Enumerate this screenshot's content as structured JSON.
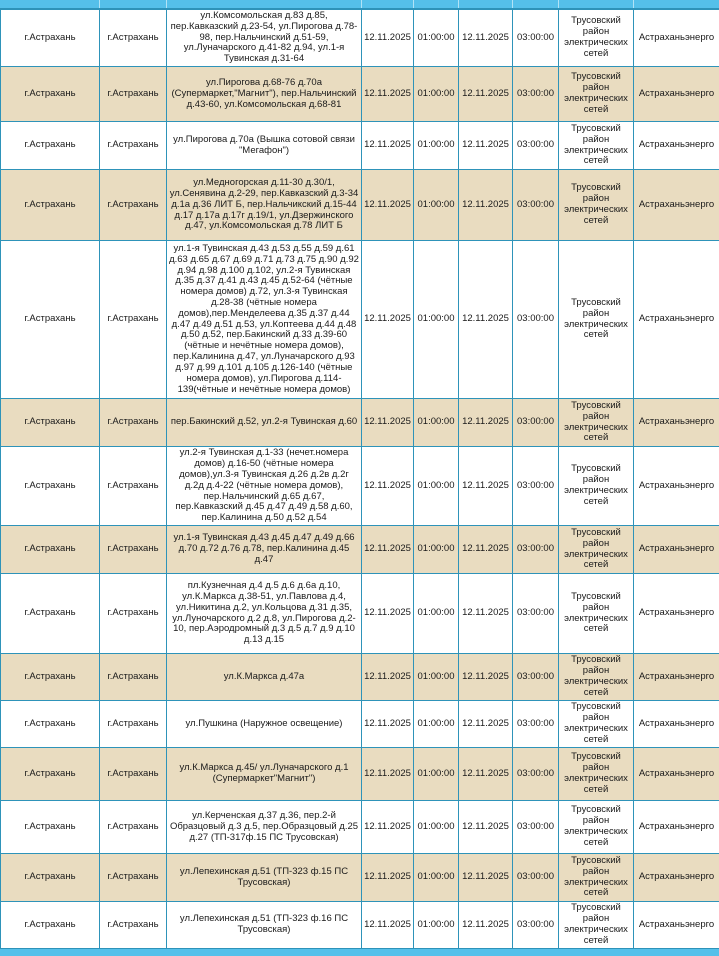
{
  "colors": {
    "border": "#2e93b9",
    "bar": "#55c0ea",
    "row_alt": "#e9dcc0",
    "row_base": "#ffffff",
    "text": "#1a1a1a"
  },
  "table": {
    "rows": [
      {
        "region": "г.Астрахань",
        "city": "г.Астрахань",
        "addresses": "ул.Комсомольская д.83 д.85, пер.Кавказский д.23-54, ул.Пирогова д.78-98, пер.Нальчинский д.51-59, ул.Луначарского д.41-82 д.94, ул.1-я Тувинская д.31-64",
        "date_start": "12.11.2025",
        "time_start": "01:00:00",
        "date_end": "12.11.2025",
        "time_end": "03:00:00",
        "division": "Трусовский район электрических сетей",
        "company": "Астраханьэнерго"
      },
      {
        "region": "г.Астрахань",
        "city": "г.Астрахань",
        "addresses": "ул.Пирогова д.68-76 д.70а (Супермаркет,\"Магнит\"), пер.Нальчинский д.43-60, ул.Комсомольская д.68-81",
        "date_start": "12.11.2025",
        "time_start": "01:00:00",
        "date_end": "12.11.2025",
        "time_end": "03:00:00",
        "division": "Трусовский район электрических сетей",
        "company": "Астраханьэнерго"
      },
      {
        "region": "г.Астрахань",
        "city": "г.Астрахань",
        "addresses": "ул.Пирогова д.70а (Вышка сотовой связи \"Мегафон\")",
        "date_start": "12.11.2025",
        "time_start": "01:00:00",
        "date_end": "12.11.2025",
        "time_end": "03:00:00",
        "division": "Трусовский район электрических сетей",
        "company": "Астраханьэнерго"
      },
      {
        "region": "г.Астрахань",
        "city": "г.Астрахань",
        "addresses": "ул.Медногорская д.11-30 д.30/1, ул.Сенявина д.2-29, пер.Кавказский д.3-34 д.1а д.36 ЛИТ Б, пер.Нальчикский д.15-44 д.17 д.17а д.17г д.19/1, ул.Дзержинского д.47, ул.Комсомольская д.78 ЛИТ Б",
        "date_start": "12.11.2025",
        "time_start": "01:00:00",
        "date_end": "12.11.2025",
        "time_end": "03:00:00",
        "division": "Трусовский район электрических сетей",
        "company": "Астраханьэнерго"
      },
      {
        "region": "г.Астрахань",
        "city": "г.Астрахань",
        "addresses": "ул.1-я Тувинская д.43 д.53 д.55 д.59 д.61 д.63 д.65 д.67 д.69 д.71 д.73 д.75 д.90 д.92 д.94 д.98 д.100 д.102, ул.2-я Тувинская д.35 д.37 д.41 д.43 д.45 д.52-64 (чётные номера домов) д.72, ул.3-я Тувинская д.28-38 (чётные номера домов),пер.Менделеева д.35 д.37 д.44 д.47 д.49 д.51 д.53, ул.Коптеева д.44 д.48 д.50 д.52, пер.Бакинский д.33 д.39-60 (чётные и нечётные номера домов), пер.Калинина д.47, ул.Луначарского д.93 д.97 д.99 д.101 д.105 д.126-140 (чётные номера домов), ул.Пирогова д.114-139(чётные и нечётные номера домов)",
        "date_start": "12.11.2025",
        "time_start": "01:00:00",
        "date_end": "12.11.2025",
        "time_end": "03:00:00",
        "division": "Трусовский район электрических сетей",
        "company": "Астраханьэнерго"
      },
      {
        "region": "г.Астрахань",
        "city": "г.Астрахань",
        "addresses": "пер.Бакинский д.52, ул.2-я Тувинская д.60",
        "date_start": "12.11.2025",
        "time_start": "01:00:00",
        "date_end": "12.11.2025",
        "time_end": "03:00:00",
        "division": "Трусовский район электрических сетей",
        "company": "Астраханьэнерго"
      },
      {
        "region": "г.Астрахань",
        "city": "г.Астрахань",
        "addresses": "ул.2-я Тувинская д.1-33 (нечет.номера домов) д.16-50 (чётные номера домов),ул.3-я Тувинская д.26 д.2в д.2г д.2д д.4-22 (чётные номера домов), пер.Нальчинский д.65 д.67, пер.Кавказский д.45 д.47 д.49 д.58 д.60, пер.Калинина д.50 д.52 д.54",
        "date_start": "12.11.2025",
        "time_start": "01:00:00",
        "date_end": "12.11.2025",
        "time_end": "03:00:00",
        "division": "Трусовский район электрических сетей",
        "company": "Астраханьэнерго"
      },
      {
        "region": "г.Астрахань",
        "city": "г.Астрахань",
        "addresses": "ул.1-я Тувинская д.43 д.45 д.47 д.49 д.66 д.70 д.72 д.76 д.78, пер.Калинина д.45 д.47",
        "date_start": "12.11.2025",
        "time_start": "01:00:00",
        "date_end": "12.11.2025",
        "time_end": "03:00:00",
        "division": "Трусовский район электрических сетей",
        "company": "Астраханьэнерго"
      },
      {
        "region": "г.Астрахань",
        "city": "г.Астрахань",
        "addresses": "пл.Кузнечная д.4 д.5 д.6 д.6а д.10, ул.К.Маркса д.38-51, ул.Павлова д.4, ул.Никитина д.2, ул.Кольцова д.31 д.35, ул.Луночарского д.2 д.8, ул.Пирогова д.2-10, пер.Аэродромный д.3 д.5 д.7 д.9 д.10 д.13 д.15",
        "date_start": "12.11.2025",
        "time_start": "01:00:00",
        "date_end": "12.11.2025",
        "time_end": "03:00:00",
        "division": "Трусовский район электрических сетей",
        "company": "Астраханьэнерго"
      },
      {
        "region": "г.Астрахань",
        "city": "г.Астрахань",
        "addresses": "ул.К.Маркса д.47а",
        "date_start": "12.11.2025",
        "time_start": "01:00:00",
        "date_end": "12.11.2025",
        "time_end": "03:00:00",
        "division": "Трусовский район электрических сетей",
        "company": "Астраханьэнерго"
      },
      {
        "region": "г.Астрахань",
        "city": "г.Астрахань",
        "addresses": "ул.Пушкина (Наружное освещение)",
        "date_start": "12.11.2025",
        "time_start": "01:00:00",
        "date_end": "12.11.2025",
        "time_end": "03:00:00",
        "division": "Трусовский район электрических сетей",
        "company": "Астраханьэнерго"
      },
      {
        "region": "г.Астрахань",
        "city": "г.Астрахань",
        "addresses": "ул.К.Маркса д.45/ ул.Луначарского д.1 (Супермаркет\"Магнит\")",
        "date_start": "12.11.2025",
        "time_start": "01:00:00",
        "date_end": "12.11.2025",
        "time_end": "03:00:00",
        "division": "Трусовский район электрических сетей",
        "company": "Астраханьэнерго"
      },
      {
        "region": "г.Астрахань",
        "city": "г.Астрахань",
        "addresses": "ул.Керченская д.37 д.36, пер.2-й Образцовый д.3 д.5, пер.Образцовый д.25 д.27 (ТП-317ф.15 ПС Трусовская)",
        "date_start": "12.11.2025",
        "time_start": "01:00:00",
        "date_end": "12.11.2025",
        "time_end": "03:00:00",
        "division": "Трусовский район электрических сетей",
        "company": "Астраханьэнерго"
      },
      {
        "region": "г.Астрахань",
        "city": "г.Астрахань",
        "addresses": "ул.Лепехинская д.51 (ТП-323 ф.15 ПС Трусовская)",
        "date_start": "12.11.2025",
        "time_start": "01:00:00",
        "date_end": "12.11.2025",
        "time_end": "03:00:00",
        "division": "Трусовский район электрических сетей",
        "company": "Астраханьэнерго"
      },
      {
        "region": "г.Астрахань",
        "city": "г.Астрахань",
        "addresses": "ул.Лепехинская д.51 (ТП-323 ф.16 ПС Трусовская)",
        "date_start": "12.11.2025",
        "time_start": "01:00:00",
        "date_end": "12.11.2025",
        "time_end": "03:00:00",
        "division": "Трусовский район электрических сетей",
        "company": "Астраханьэнерго"
      }
    ]
  }
}
